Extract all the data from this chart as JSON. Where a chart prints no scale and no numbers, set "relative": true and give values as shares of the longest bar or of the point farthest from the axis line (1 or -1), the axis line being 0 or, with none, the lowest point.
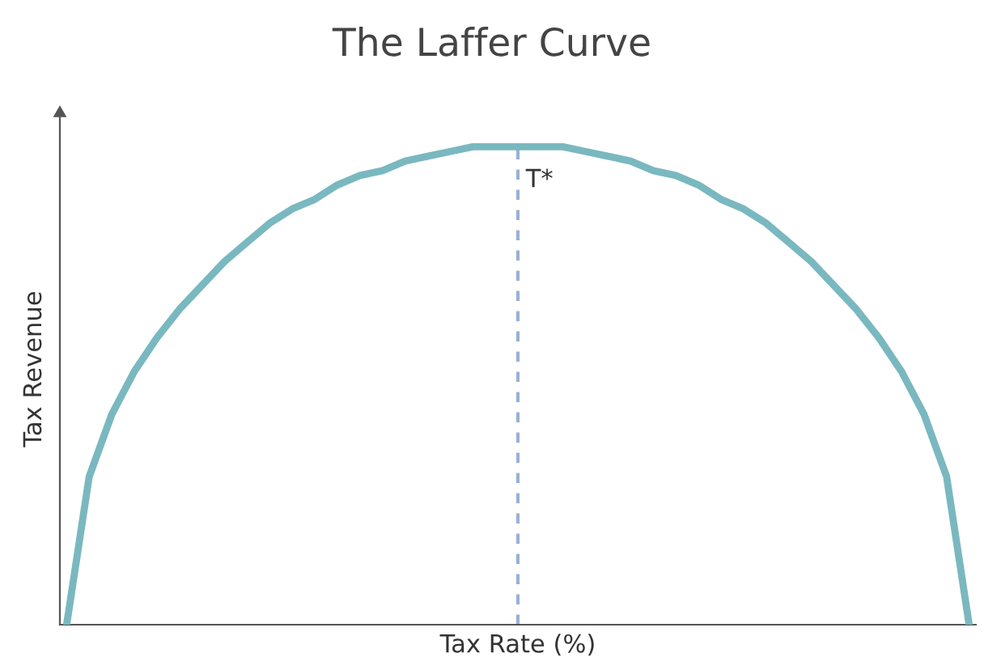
{
  "chart_data": {
    "type": "line",
    "title": "The Laffer Curve",
    "xlabel": "Tax Rate (%)",
    "ylabel": "Tax Revenue",
    "relative": true,
    "categories": [
      null,
      null,
      null,
      null,
      null,
      null,
      null,
      null,
      null,
      null,
      null,
      null,
      null,
      null,
      null,
      null,
      null,
      null,
      null,
      null,
      null,
      null,
      null,
      null,
      null,
      null,
      null,
      null,
      null,
      null,
      null,
      null,
      null,
      null,
      null,
      null,
      null,
      null,
      null,
      null,
      null
    ],
    "series": [
      {
        "color": "#7ab8c0",
        "values": [
          0,
          0.31,
          0.44,
          0.53,
          0.6,
          0.66,
          0.71,
          0.76,
          0.8,
          0.84,
          0.87,
          0.89,
          0.92,
          0.94,
          0.95,
          0.97,
          0.98,
          0.99,
          1.0,
          1.0,
          1.0,
          1.0,
          1.0,
          0.99,
          0.98,
          0.97,
          0.95,
          0.94,
          0.92,
          0.89,
          0.87,
          0.84,
          0.8,
          0.76,
          0.71,
          0.66,
          0.6,
          0.53,
          0.44,
          0.31,
          0
        ]
      }
    ],
    "annotations": [
      "T*"
    ],
    "marker": "none",
    "line_style": "solid",
    "grid": false,
    "legend": false,
    "tick_labels": false
  }
}
